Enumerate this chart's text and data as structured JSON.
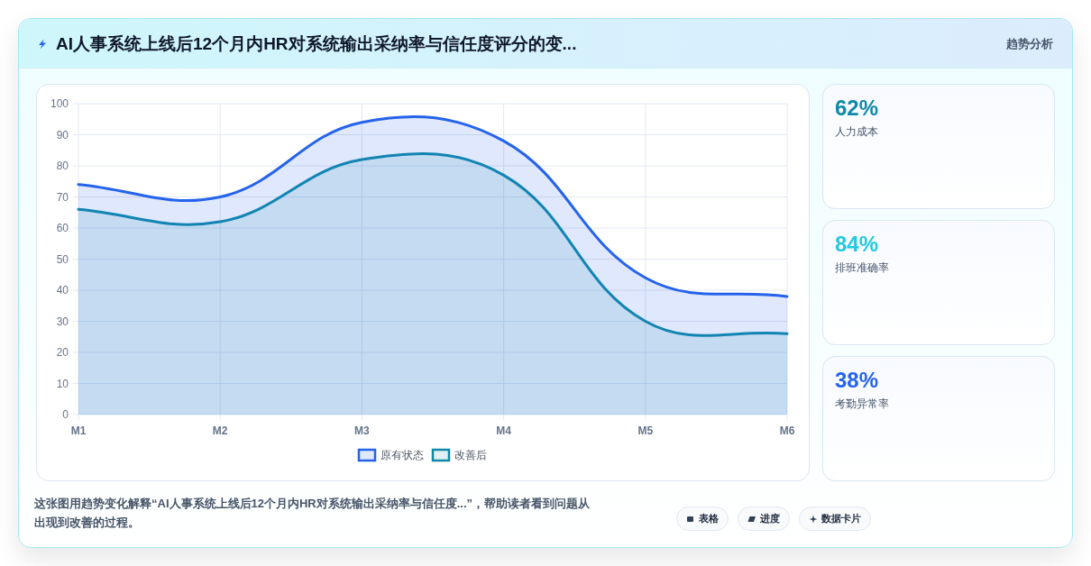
{
  "chart_data": [
    {
      "type": "area",
      "title": "AI人事系统上线后12个月内HR对系统输出采纳率与信任度评分的变...",
      "categories": [
        "M1",
        "M2",
        "M3",
        "M4",
        "M5",
        "M6"
      ],
      "series": [
        {
          "name": "原有状态",
          "color": "#2563eb",
          "values": [
            74,
            70,
            94,
            88,
            44,
            38
          ]
        },
        {
          "name": "改善后",
          "color": "#0e8aa8",
          "values": [
            66,
            62,
            82,
            77,
            30,
            26
          ]
        }
      ],
      "ylim": [
        0,
        100
      ],
      "yticks": [
        0,
        10,
        20,
        30,
        40,
        50,
        60,
        70,
        80,
        90,
        100
      ],
      "grid": true,
      "legend": "bottom",
      "annotations": [
        "这张图用趋势变化解释“AI人事系统上线后12个月内HR对系统输出采纳率与信任度...”，帮助读者看到问题从出现到改善的过程。",
        "表格",
        "进度",
        "数据卡片"
      ]
    },
    {
      "type": "other",
      "subtitle": "趋势分析",
      "annotations": [
        "62%",
        "人力成本"
      ]
    },
    {
      "type": "other",
      "annotations": [
        "84%",
        "排班准确率"
      ]
    },
    {
      "type": "other",
      "annotations": [
        "38%",
        "考勤异常率"
      ]
    }
  ]
}
